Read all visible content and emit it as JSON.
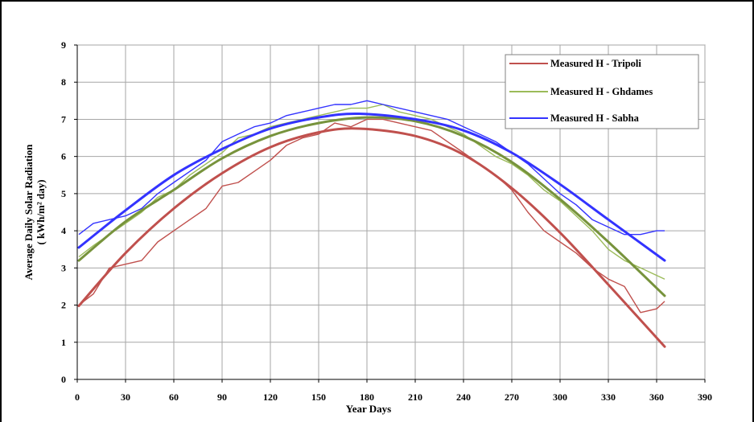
{
  "chart_data": {
    "type": "line",
    "title": "",
    "xlabel": "Year Days",
    "ylabel": "Average Daily Solar Radiation",
    "ylabel_unit": "( kWh/m² day)",
    "xlim": [
      0,
      390
    ],
    "ylim": [
      0,
      9
    ],
    "xticks": [
      0,
      30,
      60,
      90,
      120,
      150,
      180,
      210,
      240,
      270,
      300,
      330,
      360,
      390
    ],
    "yticks": [
      0,
      1,
      2,
      3,
      4,
      5,
      6,
      7,
      8,
      9
    ],
    "grid": true,
    "legend_position": "top-right",
    "series": [
      {
        "name": "Measured H - Tripoli",
        "color": "#c0504d",
        "x": [
          1,
          10,
          20,
          30,
          40,
          50,
          60,
          70,
          80,
          90,
          100,
          110,
          120,
          130,
          140,
          150,
          160,
          170,
          180,
          190,
          200,
          210,
          220,
          230,
          240,
          250,
          260,
          270,
          280,
          290,
          300,
          310,
          320,
          330,
          340,
          350,
          360,
          365
        ],
        "values": [
          2.0,
          2.3,
          3.0,
          3.1,
          3.2,
          3.7,
          4.0,
          4.3,
          4.6,
          5.2,
          5.3,
          5.6,
          5.9,
          6.3,
          6.5,
          6.6,
          6.9,
          6.8,
          7.0,
          7.0,
          6.9,
          6.8,
          6.7,
          6.4,
          6.1,
          5.8,
          5.5,
          5.1,
          4.5,
          4.0,
          3.7,
          3.4,
          3.0,
          2.7,
          2.5,
          1.8,
          1.9,
          2.1
        ]
      },
      {
        "name": "Measured H - Ghdames",
        "color": "#9bbb59",
        "x": [
          1,
          10,
          20,
          30,
          40,
          50,
          60,
          70,
          80,
          90,
          100,
          110,
          120,
          130,
          140,
          150,
          160,
          170,
          180,
          190,
          200,
          210,
          220,
          230,
          240,
          250,
          260,
          270,
          280,
          290,
          300,
          310,
          320,
          330,
          340,
          350,
          360,
          365
        ],
        "values": [
          3.3,
          3.6,
          3.9,
          4.2,
          4.5,
          4.9,
          5.1,
          5.5,
          5.8,
          6.1,
          6.5,
          6.6,
          6.8,
          6.9,
          7.0,
          7.1,
          7.2,
          7.3,
          7.3,
          7.4,
          7.2,
          7.1,
          7.0,
          6.8,
          6.6,
          6.3,
          6.0,
          5.8,
          5.5,
          5.1,
          4.8,
          4.4,
          4.0,
          3.5,
          3.2,
          3.0,
          2.8,
          2.7
        ]
      },
      {
        "name": "Measured H - Sabha",
        "color": "#3333ff",
        "x": [
          1,
          10,
          20,
          30,
          40,
          50,
          60,
          70,
          80,
          90,
          100,
          110,
          120,
          130,
          140,
          150,
          160,
          170,
          180,
          190,
          200,
          210,
          220,
          230,
          240,
          250,
          260,
          270,
          280,
          290,
          300,
          310,
          320,
          330,
          340,
          350,
          360,
          365
        ],
        "values": [
          3.9,
          4.2,
          4.3,
          4.4,
          4.6,
          5.0,
          5.3,
          5.6,
          5.9,
          6.4,
          6.6,
          6.8,
          6.9,
          7.1,
          7.2,
          7.3,
          7.4,
          7.4,
          7.5,
          7.4,
          7.3,
          7.2,
          7.1,
          7.0,
          6.8,
          6.6,
          6.4,
          6.1,
          5.8,
          5.4,
          5.0,
          4.7,
          4.3,
          4.1,
          3.9,
          3.9,
          4.0,
          4.0
        ]
      }
    ],
    "trendlines": [
      {
        "color": "#c0504d",
        "x": [
          1,
          30,
          60,
          90,
          120,
          150,
          175,
          210,
          240,
          270,
          300,
          330,
          365
        ],
        "values": [
          1.98,
          3.4,
          4.6,
          5.55,
          6.25,
          6.65,
          6.75,
          6.55,
          6.05,
          5.15,
          3.95,
          2.55,
          0.88
        ]
      },
      {
        "color": "#77933c",
        "x": [
          1,
          30,
          60,
          90,
          120,
          150,
          180,
          210,
          240,
          270,
          300,
          330,
          365
        ],
        "values": [
          3.2,
          4.25,
          5.1,
          5.95,
          6.55,
          6.9,
          7.05,
          6.95,
          6.55,
          5.85,
          4.85,
          3.7,
          2.25
        ]
      },
      {
        "color": "#3333ff",
        "x": [
          1,
          30,
          60,
          90,
          120,
          150,
          175,
          210,
          240,
          270,
          300,
          330,
          365
        ],
        "values": [
          3.55,
          4.55,
          5.5,
          6.2,
          6.75,
          7.05,
          7.15,
          7.0,
          6.7,
          6.1,
          5.25,
          4.3,
          3.2
        ]
      }
    ]
  }
}
